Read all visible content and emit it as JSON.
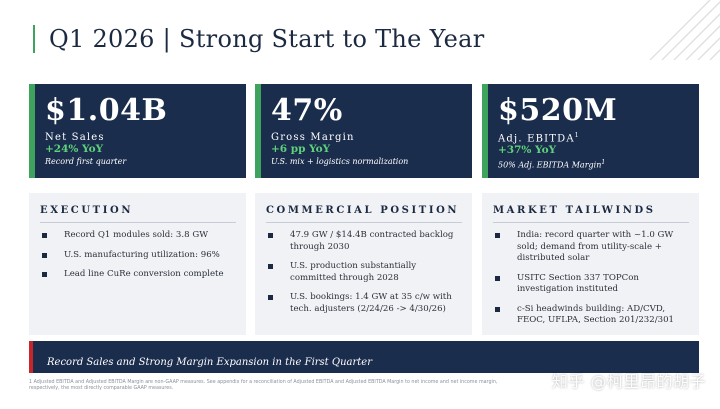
{
  "title": "Q1 2026 | Strong Start to The Year",
  "kpis": [
    {
      "value": "$1.04B",
      "label": "Net Sales",
      "label_sup": "",
      "change": "+24% YoY",
      "note": "Record first quarter",
      "note_sup": ""
    },
    {
      "value": "47%",
      "label": "Gross Margin",
      "label_sup": "",
      "change": "+6 pp YoY",
      "note": "U.S. mix + logistics normalization",
      "note_sup": ""
    },
    {
      "value": "$520M",
      "label": "Adj. EBITDA",
      "label_sup": "1",
      "change": "+37% YoY",
      "note": "50% Adj. EBITDA Margin",
      "note_sup": "1"
    }
  ],
  "panels": [
    {
      "title": "EXECUTION",
      "bullets": [
        "Record Q1 modules sold: 3.8 GW",
        "U.S. manufacturing utilization: 96%",
        "Lead line CuRe conversion complete"
      ]
    },
    {
      "title": "COMMERCIAL POSITION",
      "bullets": [
        "47.9 GW / $14.4B contracted backlog through 2030",
        "U.S. production substantially committed through 2028",
        "U.S. bookings: 1.4 GW at 35 c/w with tech. adjusters (2/24/26 -> 4/30/26)"
      ]
    },
    {
      "title": "MARKET TAILWINDS",
      "bullets": [
        "India: record quarter with ~1.0 GW sold; demand from utility-scale + distributed solar",
        "USITC Section 337 TOPCon investigation instituted",
        "c-Si headwinds building: AD/CVD, FEOC, UFLPA, Section 201/232/301"
      ]
    }
  ],
  "banner": "Record Sales and Strong Margin Expansion in the First Quarter",
  "footnote": "1 Adjusted EBITDA and Adjusted EBITDA Margin are non-GAAP measures. See appendix for a reconciliation of Adjusted EBITDA and Adjusted EBITDA Margin to net income and net income margin, respectively, the most directly comparable GAAP measures.",
  "watermark": "知乎 @柯里昂的胡子",
  "colors": {
    "navy": "#1b2d4c",
    "green_accent": "#3da35d",
    "change_green": "#5fd17c",
    "banner_accent": "#c8242b",
    "panel_bg": "#f1f2f5"
  }
}
